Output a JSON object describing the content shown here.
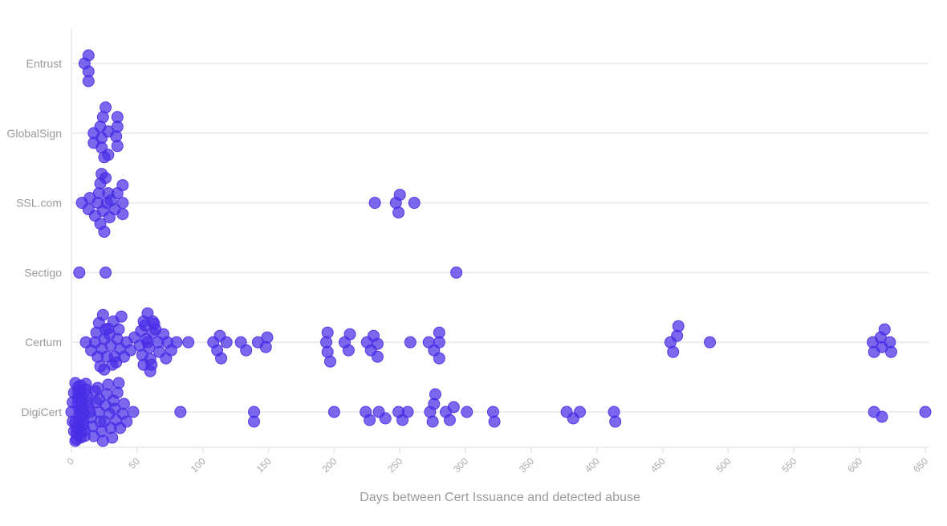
{
  "chart_data": {
    "type": "scatter",
    "subtype": "beeswarm",
    "title": "",
    "xlabel": "Days between Cert Issuance and detected abuse",
    "ylabel": "",
    "xlim": [
      0,
      650
    ],
    "xticks": [
      0,
      50,
      100,
      150,
      200,
      250,
      300,
      350,
      400,
      450,
      500,
      550,
      600,
      650
    ],
    "grid": "horizontal",
    "point_color": "#4a2ee6",
    "categories": [
      "Entrust",
      "GlobalSign",
      "SSL.com",
      "Sectigo",
      "Certum",
      "DigiCert"
    ],
    "series": [
      {
        "category": "Entrust",
        "values": [
          10,
          13,
          13,
          13
        ]
      },
      {
        "category": "GlobalSign",
        "values": [
          17,
          17,
          22,
          23,
          23,
          24,
          25,
          26,
          28,
          28,
          34,
          35,
          35,
          35
        ]
      },
      {
        "category": "SSL.com",
        "values": [
          8,
          13,
          14,
          18,
          20,
          21,
          22,
          22,
          23,
          24,
          25,
          26,
          27,
          28,
          29,
          30,
          33,
          35,
          39,
          39,
          39,
          231,
          247,
          249,
          250,
          261
        ]
      },
      {
        "category": "Sectigo",
        "values": [
          6,
          26,
          293
        ]
      },
      {
        "category": "Certum",
        "values": [
          11,
          15,
          18,
          19,
          20,
          21,
          22,
          23,
          24,
          25,
          25,
          26,
          27,
          28,
          29,
          30,
          31,
          32,
          33,
          34,
          35,
          36,
          37,
          38,
          40,
          42,
          45,
          48,
          52,
          53,
          54,
          55,
          55,
          56,
          57,
          58,
          58,
          59,
          60,
          60,
          61,
          62,
          62,
          63,
          64,
          66,
          67,
          70,
          72,
          73,
          76,
          80,
          89,
          108,
          111,
          113,
          114,
          118,
          129,
          133,
          142,
          148,
          149,
          194,
          195,
          195,
          197,
          208,
          211,
          212,
          225,
          228,
          230,
          233,
          233,
          258,
          272,
          276,
          280,
          280,
          280,
          456,
          458,
          461,
          462,
          486,
          610,
          611,
          616,
          617,
          619,
          623,
          624
        ]
      },
      {
        "category": "DigiCert",
        "values": [
          0,
          1,
          1,
          2,
          2,
          3,
          3,
          3,
          4,
          4,
          4,
          5,
          5,
          5,
          5,
          6,
          6,
          6,
          6,
          7,
          7,
          7,
          7,
          8,
          8,
          8,
          9,
          9,
          9,
          10,
          10,
          11,
          11,
          12,
          12,
          13,
          14,
          15,
          16,
          17,
          18,
          19,
          20,
          21,
          21,
          22,
          23,
          24,
          25,
          26,
          27,
          28,
          29,
          30,
          31,
          32,
          33,
          34,
          35,
          36,
          37,
          39,
          40,
          42,
          47,
          83,
          139,
          139,
          200,
          224,
          227,
          234,
          239,
          249,
          252,
          256,
          273,
          275,
          276,
          277,
          285,
          288,
          291,
          301,
          321,
          322,
          377,
          382,
          387,
          413,
          414,
          611,
          617,
          650
        ]
      }
    ]
  }
}
